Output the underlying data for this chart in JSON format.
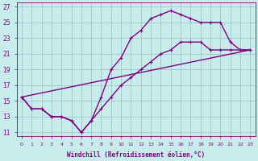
{
  "xlabel": "Windchill (Refroidissement éolien,°C)",
  "bg_color": "#c8ecec",
  "line_color": "#800080",
  "grid_color": "#a0cccc",
  "xlim": [
    -0.5,
    23.5
  ],
  "ylim": [
    10.5,
    27.5
  ],
  "xticks": [
    0,
    1,
    2,
    3,
    4,
    5,
    6,
    7,
    8,
    9,
    10,
    11,
    12,
    13,
    14,
    15,
    16,
    17,
    18,
    19,
    20,
    21,
    22,
    23
  ],
  "yticks": [
    11,
    13,
    15,
    17,
    19,
    21,
    23,
    25,
    27
  ],
  "curve1_x": [
    0,
    1,
    2,
    3,
    4,
    5,
    6,
    7,
    8,
    9,
    10,
    11,
    12,
    13,
    14,
    15,
    16,
    17,
    18,
    19,
    20,
    21,
    22,
    23
  ],
  "curve1_y": [
    15.5,
    14.0,
    14.0,
    13.0,
    13.0,
    12.5,
    11.0,
    12.5,
    15.5,
    19.0,
    20.5,
    23.0,
    24.0,
    25.5,
    26.0,
    26.5,
    26.0,
    25.5,
    25.0,
    25.0,
    25.0,
    22.5,
    21.5,
    21.5
  ],
  "curve2_x": [
    0,
    1,
    2,
    3,
    4,
    5,
    6,
    7,
    8,
    9,
    10,
    11,
    12,
    13,
    14,
    15,
    16,
    17,
    18,
    19,
    20,
    21,
    22,
    23
  ],
  "curve2_y": [
    15.5,
    14.0,
    14.0,
    13.0,
    13.0,
    12.5,
    11.0,
    12.5,
    14.0,
    15.5,
    17.0,
    18.0,
    19.0,
    20.0,
    21.0,
    21.5,
    22.5,
    22.5,
    22.5,
    21.5,
    21.5,
    21.5,
    21.5,
    21.5
  ],
  "line3_x": [
    0,
    23
  ],
  "line3_y": [
    15.5,
    21.5
  ]
}
